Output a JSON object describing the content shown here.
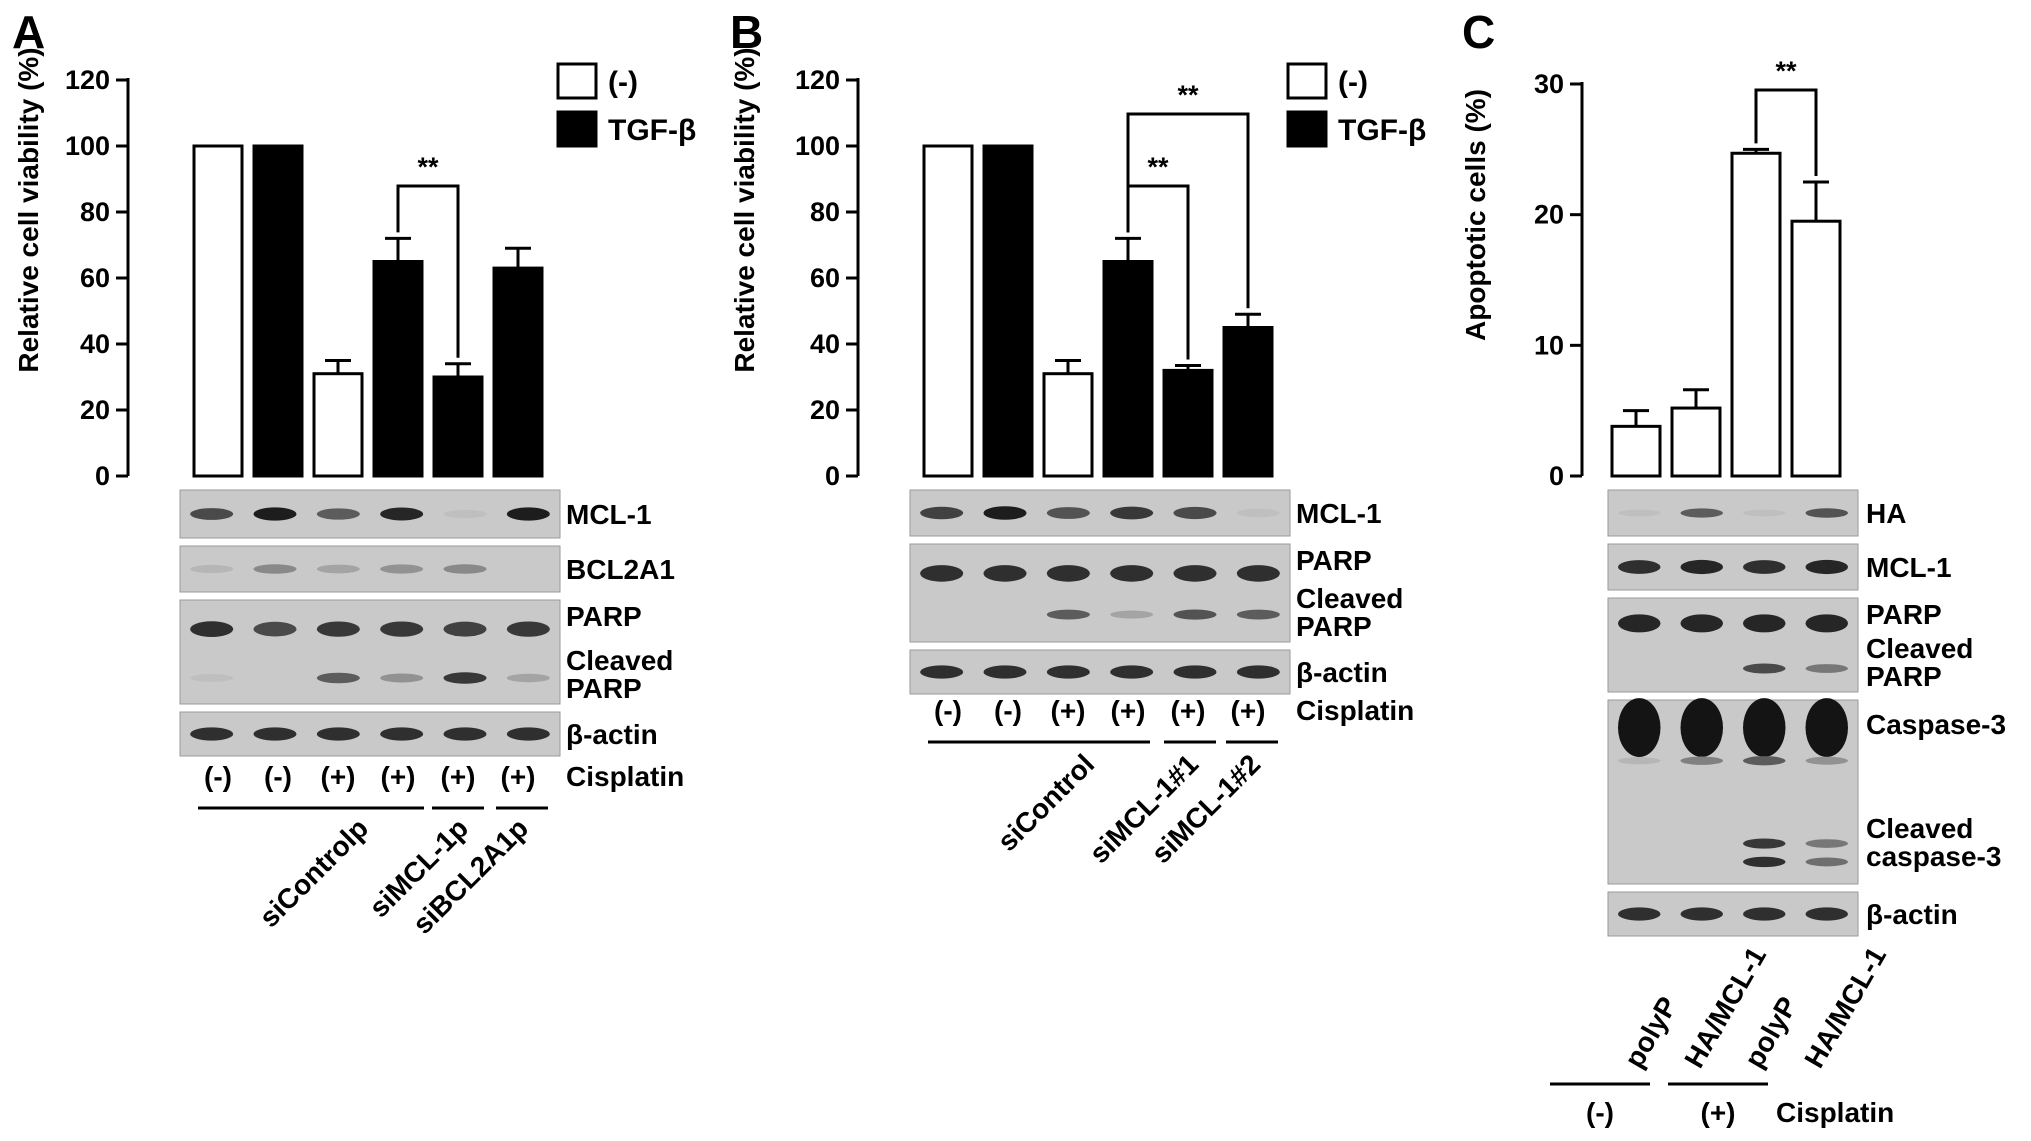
{
  "panels": [
    {
      "letter": "A",
      "ylabel": "Relative cell viability (%)",
      "yticks": [
        "0",
        "20",
        "40",
        "60",
        "80",
        "100",
        "120"
      ],
      "legend": [
        {
          "label": "(-)",
          "fill": "#ffffff"
        },
        {
          "label": "TGF-β",
          "fill": "#000000"
        }
      ],
      "significance": [
        "**"
      ],
      "blots": [
        {
          "rows": [
            "MCL-1"
          ]
        },
        {
          "rows": [
            "BCL2A1"
          ]
        },
        {
          "rows": [
            "PARP",
            "Cleaved",
            "PARP"
          ]
        },
        {
          "rows": [
            "β-actin"
          ]
        }
      ],
      "cisplatin_lanes": [
        "(-)",
        "(-)",
        "(+)",
        "(+)",
        "(+)",
        "(+)"
      ],
      "cisplatin_label": "Cisplatin",
      "groups": [
        "siControlp",
        "siMCL-1p",
        "siBCL2A1p"
      ]
    },
    {
      "letter": "B",
      "ylabel": "Relative cell viability (%)",
      "yticks": [
        "0",
        "20",
        "40",
        "60",
        "80",
        "100",
        "120"
      ],
      "legend": [
        {
          "label": "(-)",
          "fill": "#ffffff"
        },
        {
          "label": "TGF-β",
          "fill": "#000000"
        }
      ],
      "significance": [
        "**",
        "**"
      ],
      "blots": [
        {
          "rows": [
            "MCL-1"
          ]
        },
        {
          "rows": [
            "PARP",
            "Cleaved",
            "PARP"
          ]
        },
        {
          "rows": [
            "β-actin"
          ]
        }
      ],
      "cisplatin_lanes": [
        "(-)",
        "(-)",
        "(+)",
        "(+)",
        "(+)",
        "(+)"
      ],
      "cisplatin_label": "Cisplatin",
      "groups": [
        "siControl",
        "siMCL-1#1",
        "siMCL-1#2"
      ]
    },
    {
      "letter": "C",
      "ylabel": "Apoptotic cells (%)",
      "yticks": [
        "0",
        "10",
        "20",
        "30"
      ],
      "significance": [
        "**"
      ],
      "blots": [
        {
          "rows": [
            "HA"
          ]
        },
        {
          "rows": [
            "MCL-1"
          ]
        },
        {
          "rows": [
            "PARP",
            "Cleaved",
            "PARP"
          ]
        },
        {
          "rows": [
            "Caspase-3",
            "Cleaved",
            "caspase-3"
          ]
        },
        {
          "rows": [
            "β-actin"
          ]
        }
      ],
      "lanes": [
        "polyP",
        "HA/MCL-1",
        "polyP",
        "HA/MCL-1"
      ],
      "cisplatin_groups": [
        "(-)",
        "(+)"
      ],
      "cisplatin_label": "Cisplatin"
    }
  ],
  "chart_data": [
    {
      "type": "bar",
      "ylabel": "Relative cell viability (%)",
      "ylim": [
        0,
        120
      ],
      "categories": [
        "siControlp (-)",
        "siControlp (-)",
        "siControlp (+)",
        "siControlp (+)",
        "siMCL-1p (+)",
        "siBCL2A1p (+)"
      ],
      "tgf_beta": [
        "(-)",
        "TGF-β",
        "(-)",
        "TGF-β",
        "TGF-β",
        "TGF-β"
      ],
      "values": [
        100,
        100,
        31,
        65,
        30,
        63
      ],
      "errors": [
        0,
        0,
        4,
        7,
        4,
        6
      ],
      "significance": [
        {
          "from": 3,
          "to": 4,
          "label": "**"
        }
      ]
    },
    {
      "type": "bar",
      "ylabel": "Relative cell viability (%)",
      "ylim": [
        0,
        120
      ],
      "categories": [
        "siControl (-)",
        "siControl (-)",
        "siControl (+)",
        "siControl (+)",
        "siMCL-1#1 (+)",
        "siMCL-1#2 (+)"
      ],
      "tgf_beta": [
        "(-)",
        "TGF-β",
        "(-)",
        "TGF-β",
        "TGF-β",
        "TGF-β"
      ],
      "values": [
        100,
        100,
        31,
        65,
        32,
        45
      ],
      "errors": [
        0,
        0,
        4,
        7,
        1.5,
        4
      ],
      "significance": [
        {
          "from": 3,
          "to": 4,
          "label": "**"
        },
        {
          "from": 3,
          "to": 5,
          "label": "**"
        }
      ]
    },
    {
      "type": "bar",
      "ylabel": "Apoptotic cells (%)",
      "ylim": [
        0,
        30
      ],
      "categories": [
        "polyP (-)",
        "HA/MCL-1 (-)",
        "polyP (+)",
        "HA/MCL-1 (+)"
      ],
      "values": [
        3.8,
        5.2,
        24.7,
        19.5
      ],
      "errors": [
        1.2,
        1.4,
        0.3,
        3.0
      ],
      "significance": [
        {
          "from": 2,
          "to": 3,
          "label": "**"
        }
      ]
    }
  ]
}
